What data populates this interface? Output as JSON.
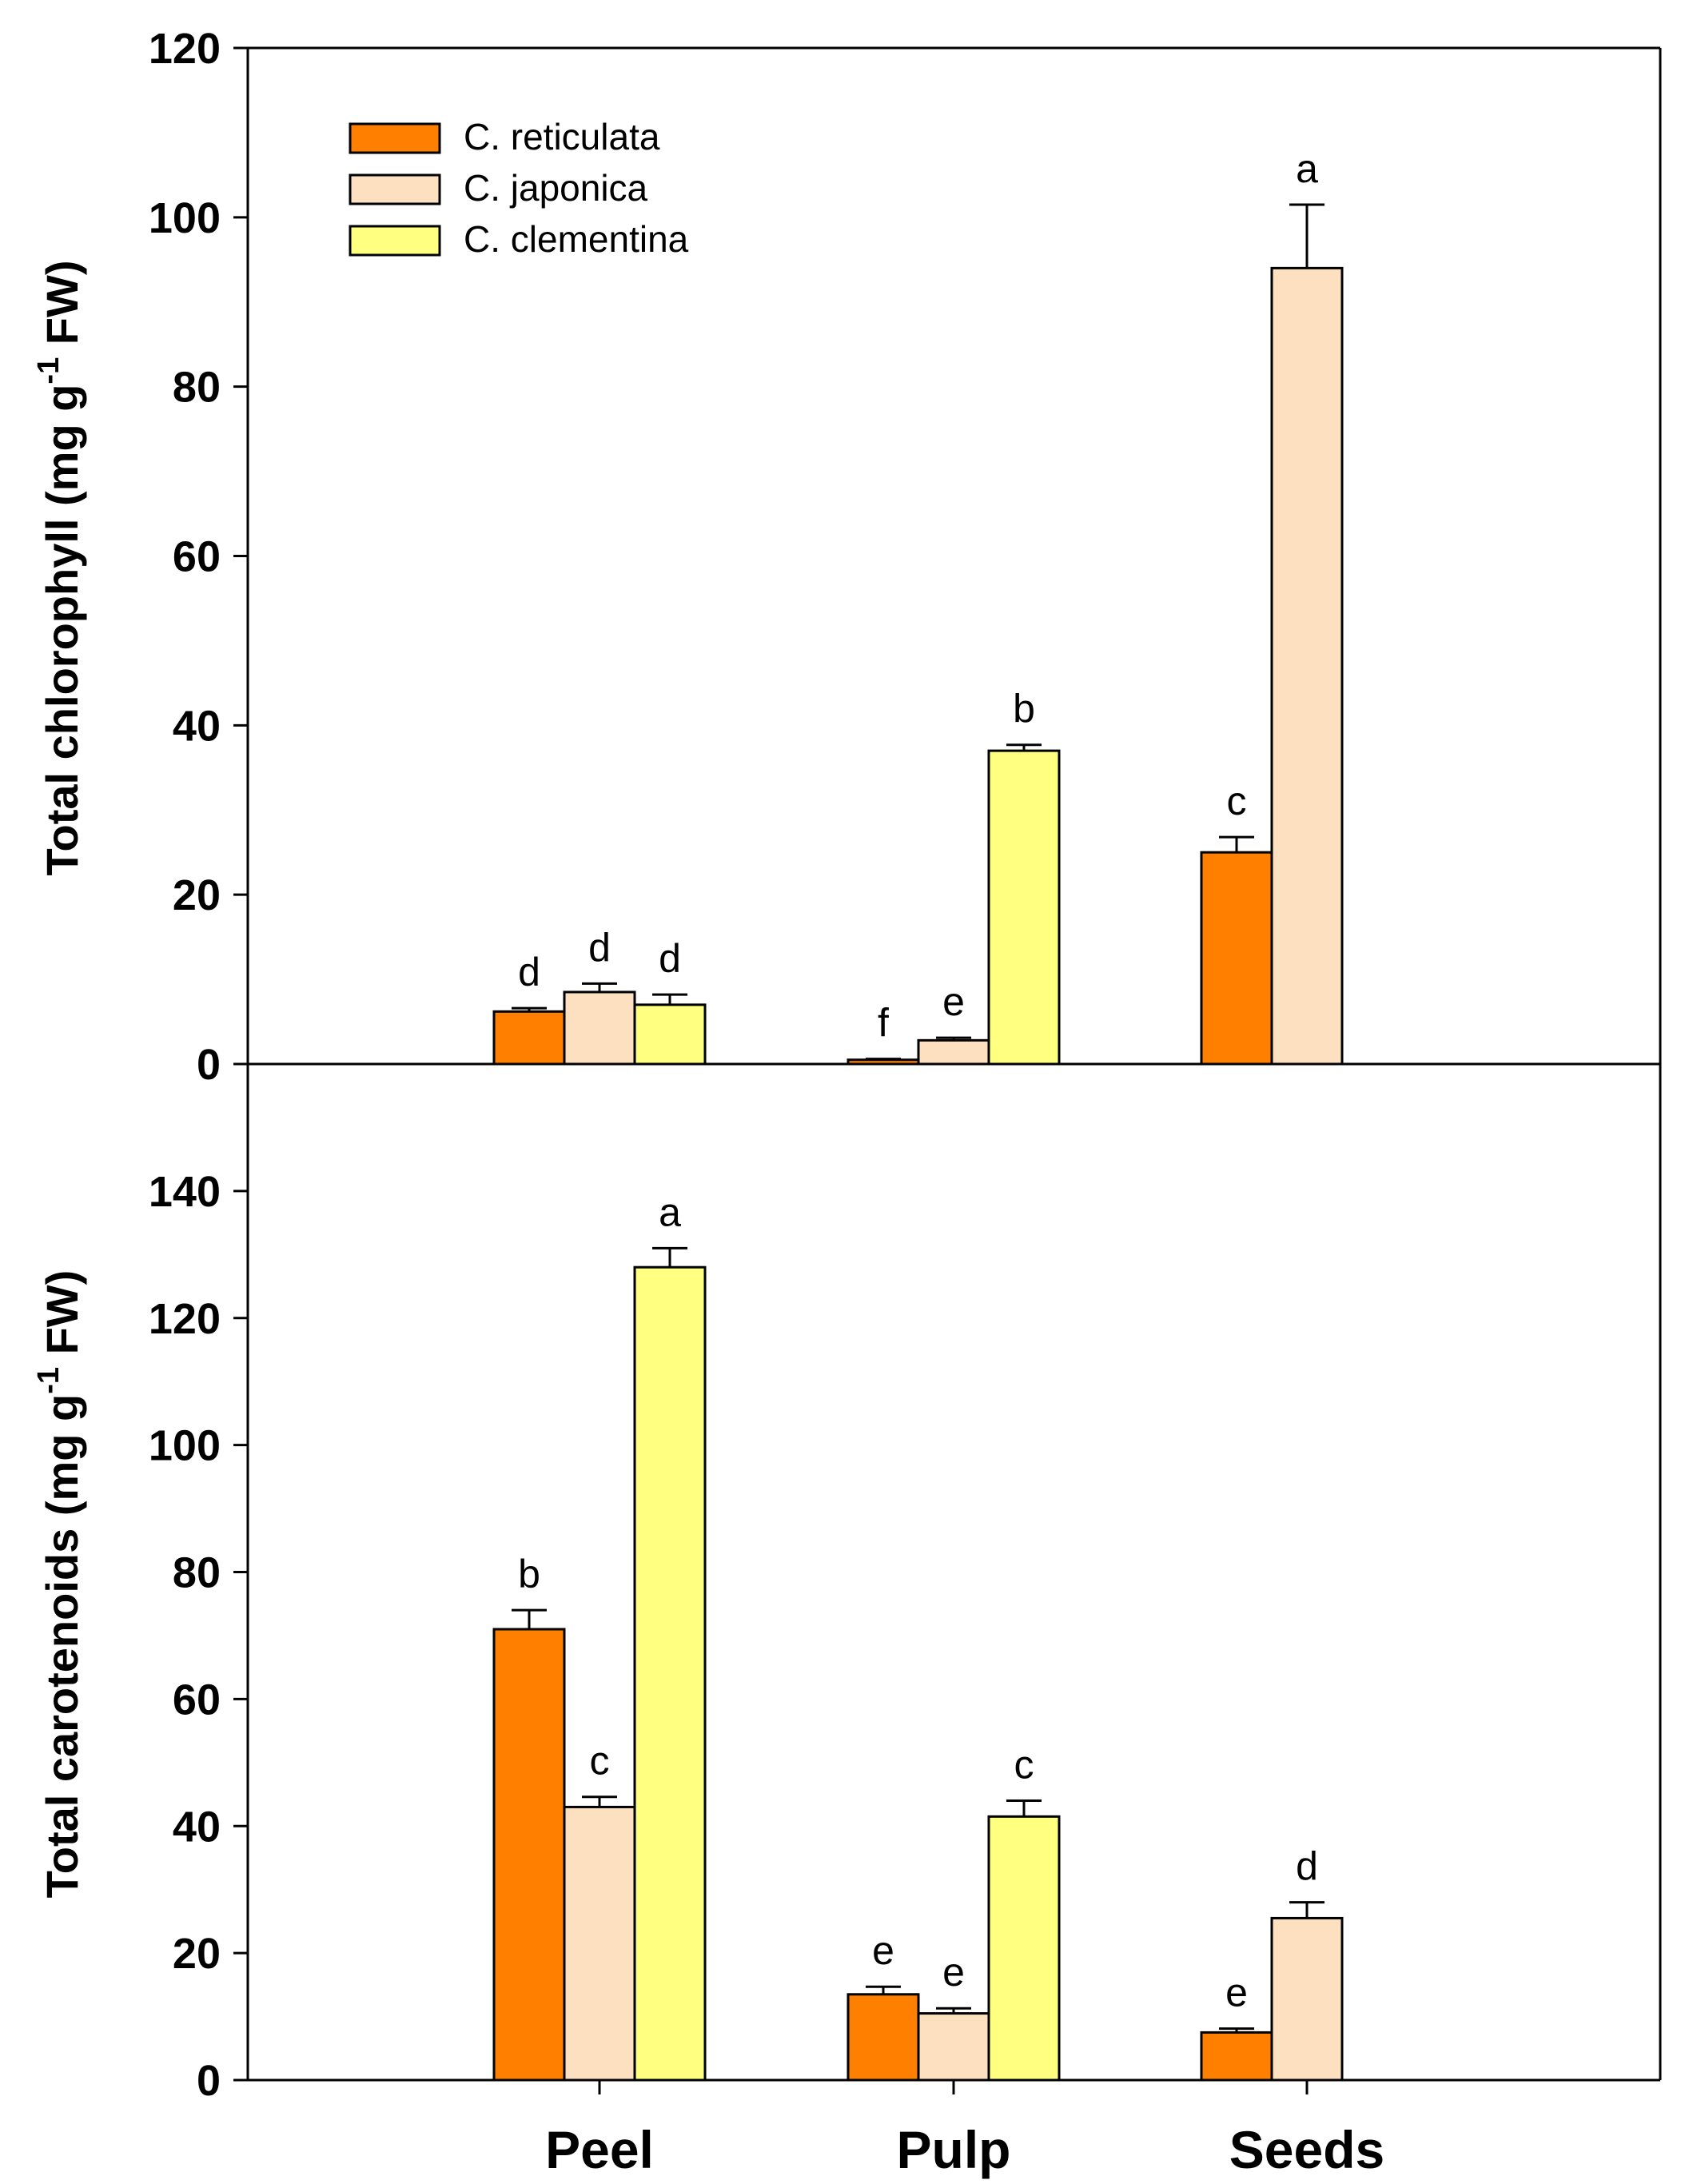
{
  "colors": {
    "C. reticulata": "#ff8000",
    "C. japonica": "#fde0c0",
    "C. clementina": "#ffff80",
    "axis": "#000000"
  },
  "chart_data": [
    {
      "type": "bar",
      "panel": "top",
      "ylabel": "Total chlorophyll (mg g",
      "ylabel_sup": "-1",
      "ylabel_end": " FW)",
      "ylim": [
        0,
        120
      ],
      "yticks": [
        0,
        20,
        40,
        60,
        80,
        100,
        120
      ],
      "categories": [
        "Peel",
        "Pulp",
        "Seeds"
      ],
      "legend_placement": "top-left",
      "series": [
        {
          "name": "C. reticulata",
          "values": [
            6.2,
            0.5,
            25.0
          ],
          "errors": [
            0.4,
            0.1,
            1.8
          ],
          "letters": [
            "d",
            "f",
            "c"
          ]
        },
        {
          "name": "C. japonica",
          "values": [
            8.5,
            2.8,
            94.0
          ],
          "errors": [
            1.0,
            0.3,
            7.5
          ],
          "letters": [
            "d",
            "e",
            "a"
          ]
        },
        {
          "name": "C. clementina",
          "values": [
            7.0,
            37.0,
            null
          ],
          "errors": [
            1.2,
            0.7,
            null
          ],
          "letters": [
            "d",
            "b",
            ""
          ]
        }
      ]
    },
    {
      "type": "bar",
      "panel": "bottom",
      "ylabel": "Total carotenoids (mg g",
      "ylabel_sup": "-1",
      "ylabel_end": " FW)",
      "ylim": [
        0,
        160
      ],
      "yticks": [
        0,
        20,
        40,
        60,
        80,
        100,
        120,
        140
      ],
      "categories": [
        "Peel",
        "Pulp",
        "Seeds"
      ],
      "series": [
        {
          "name": "C. reticulata",
          "values": [
            71.0,
            13.5,
            7.5
          ],
          "errors": [
            3.0,
            1.2,
            0.6
          ],
          "letters": [
            "b",
            "e",
            "e"
          ]
        },
        {
          "name": "C. japonica",
          "values": [
            43.0,
            10.5,
            25.5
          ],
          "errors": [
            1.6,
            0.8,
            2.5
          ],
          "letters": [
            "c",
            "e",
            "d"
          ]
        },
        {
          "name": "C. clementina",
          "values": [
            128.0,
            41.5,
            null
          ],
          "errors": [
            3.0,
            2.5,
            null
          ],
          "letters": [
            "a",
            "c",
            ""
          ]
        }
      ]
    }
  ]
}
